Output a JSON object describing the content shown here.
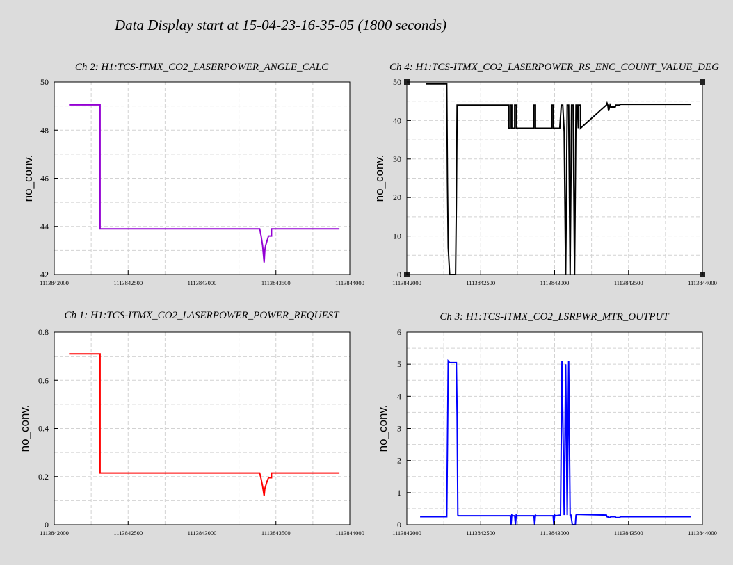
{
  "page": {
    "title": "Data Display start at 15-04-23-16-35-05 (1800 seconds)"
  },
  "chart_data": [
    {
      "type": "line",
      "title": "Ch 2: H1:TCS-ITMX_CO2_LASERPOWER_ANGLE_CALC",
      "ylabel": "no_conv.",
      "xlabel": "",
      "xlim": [
        1113842000,
        1113844000
      ],
      "ylim": [
        42,
        50
      ],
      "x_ticks": [
        1113842000,
        1113842500,
        1113843000,
        1113843500,
        1113844000
      ],
      "x_tick_labels": [
        "1113842000",
        "1113842500",
        "1113843000",
        "1113843500",
        "1113844000"
      ],
      "y_ticks": [
        42,
        44,
        46,
        48,
        50
      ],
      "y_tick_labels": [
        "42",
        "44",
        "46",
        "48",
        "50"
      ],
      "grid": true,
      "series": [
        {
          "color": "#9400d3",
          "x": [
            1113842100,
            1113842310,
            1113842310,
            1113843390,
            1113843400,
            1113843410,
            1113843420,
            1113843425,
            1113843430,
            1113843440,
            1113843450,
            1113843470,
            1113843470,
            1113843930
          ],
          "y": [
            49.05,
            49.05,
            43.9,
            43.9,
            43.6,
            43.2,
            42.5,
            43.0,
            43.2,
            43.4,
            43.6,
            43.6,
            43.9,
            43.9
          ]
        }
      ]
    },
    {
      "type": "line",
      "title": "Ch 4: H1:TCS-ITMX_CO2_LASERPOWER_RS_ENC_COUNT_VALUE_DEG",
      "ylabel": "no_conv.",
      "xlabel": "",
      "xlim": [
        1113842000,
        1113844000
      ],
      "ylim": [
        0,
        50
      ],
      "x_ticks": [
        1113842000,
        1113842500,
        1113843000,
        1113843500,
        1113844000
      ],
      "x_tick_labels": [
        "1113842000",
        "1113842500",
        "1113843000",
        "1113843500",
        "1113844000"
      ],
      "y_ticks": [
        0,
        10,
        20,
        30,
        40,
        50
      ],
      "y_tick_labels": [
        "0",
        "10",
        "20",
        "30",
        "40",
        "50"
      ],
      "grid": true,
      "series": [
        {
          "color": "#000000",
          "x": [
            1113842130,
            1113842270,
            1113842275,
            1113842280,
            1113842290,
            1113842330,
            1113842335,
            1113842340,
            1113842690,
            1113842690,
            1113842700,
            1113842700,
            1113842710,
            1113842710,
            1113842730,
            1113842730,
            1113842740,
            1113842740,
            1113842860,
            1113842860,
            1113842870,
            1113842870,
            1113842980,
            1113842980,
            1113842990,
            1113842990,
            1113843035,
            1113843045,
            1113843055,
            1113843065,
            1113843075,
            1113843085,
            1113843095,
            1113843105,
            1113843115,
            1113843125,
            1113843135,
            1113843145,
            1113843155,
            1113843160,
            1113843160,
            1113843175,
            1113843175,
            1113843350,
            1113843355,
            1113843360,
            1113843365,
            1113843375,
            1113843380,
            1113843410,
            1113843415,
            1113843440,
            1113843445,
            1113843920
          ],
          "y": [
            49.5,
            49.5,
            24,
            7,
            0,
            0,
            18,
            44,
            44,
            38,
            38,
            44,
            44,
            38,
            38,
            44,
            44,
            38,
            38,
            44,
            44,
            38,
            38,
            44,
            44,
            38,
            38,
            44,
            44,
            37,
            0,
            44,
            44,
            0,
            44,
            44,
            0,
            44,
            44,
            38,
            44,
            44,
            38,
            44,
            44.5,
            44,
            42.5,
            44,
            43.5,
            43.5,
            44,
            44,
            44.2,
            44.2
          ]
        }
      ]
    },
    {
      "type": "line",
      "title": "Ch 1: H1:TCS-ITMX_CO2_LASERPOWER_POWER_REQUEST",
      "ylabel": "no_conv.",
      "xlabel": "",
      "xlim": [
        1113842000,
        1113844000
      ],
      "ylim": [
        0,
        0.8
      ],
      "x_ticks": [
        1113842000,
        1113842500,
        1113843000,
        1113843500,
        1113844000
      ],
      "x_tick_labels": [
        "1113842000",
        "1113842500",
        "1113843000",
        "1113843500",
        "1113844000"
      ],
      "y_ticks": [
        0,
        0.2,
        0.4,
        0.6,
        0.8
      ],
      "y_tick_labels": [
        "0",
        "0.2",
        "0.4",
        "0.6",
        "0.8"
      ],
      "grid": true,
      "series": [
        {
          "color": "#ff0000",
          "x": [
            1113842100,
            1113842310,
            1113842310,
            1113843390,
            1113843400,
            1113843410,
            1113843420,
            1113843425,
            1113843430,
            1113843440,
            1113843450,
            1113843470,
            1113843470,
            1113843930
          ],
          "y": [
            0.71,
            0.71,
            0.215,
            0.215,
            0.19,
            0.16,
            0.12,
            0.15,
            0.16,
            0.18,
            0.195,
            0.195,
            0.215,
            0.215
          ]
        }
      ]
    },
    {
      "type": "line",
      "title": "Ch 3: H1:TCS-ITMX_CO2_LSRPWR_MTR_OUTPUT",
      "ylabel": "no_conv.",
      "xlabel": "",
      "xlim": [
        1113842000,
        1113844000
      ],
      "ylim": [
        0,
        6
      ],
      "x_ticks": [
        1113842000,
        1113842500,
        1113843000,
        1113843500,
        1113844000
      ],
      "x_tick_labels": [
        "1113842000",
        "1113842500",
        "1113843000",
        "1113843500",
        "1113844000"
      ],
      "y_ticks": [
        0,
        1,
        2,
        3,
        4,
        5,
        6
      ],
      "y_tick_labels": [
        "0",
        "1",
        "2",
        "3",
        "4",
        "5",
        "6"
      ],
      "grid": true,
      "series": [
        {
          "color": "#0000ff",
          "x": [
            1113842090,
            1113842270,
            1113842275,
            1113842280,
            1113842290,
            1113842335,
            1113842340,
            1113842345,
            1113842350,
            1113842700,
            1113842705,
            1113842710,
            1113842715,
            1113842730,
            1113842735,
            1113842740,
            1113842745,
            1113842860,
            1113842865,
            1113842870,
            1113842875,
            1113842990,
            1113842995,
            1113843000,
            1113843005,
            1113843040,
            1113843050,
            1113843055,
            1113843065,
            1113843075,
            1113843085,
            1113843095,
            1113843105,
            1113843110,
            1113843120,
            1113843140,
            1113843145,
            1113843150,
            1113843155,
            1113843165,
            1113843170,
            1113843350,
            1113843355,
            1113843375,
            1113843380,
            1113843410,
            1113843415,
            1113843440,
            1113843445,
            1113843920
          ],
          "y": [
            0.25,
            0.25,
            2.5,
            5.1,
            5.05,
            5.05,
            3.4,
            0.3,
            0.28,
            0.28,
            0.0,
            0.3,
            0.28,
            0.28,
            0.0,
            0.3,
            0.28,
            0.28,
            0.0,
            0.3,
            0.28,
            0.28,
            0.0,
            0.3,
            0.28,
            0.3,
            5.1,
            3.5,
            0.3,
            5.0,
            0.3,
            5.1,
            0.3,
            0.3,
            0.0,
            0.0,
            0.3,
            0.32,
            0.32,
            0.32,
            0.32,
            0.3,
            0.25,
            0.22,
            0.25,
            0.25,
            0.22,
            0.22,
            0.25,
            0.25
          ]
        }
      ]
    }
  ]
}
